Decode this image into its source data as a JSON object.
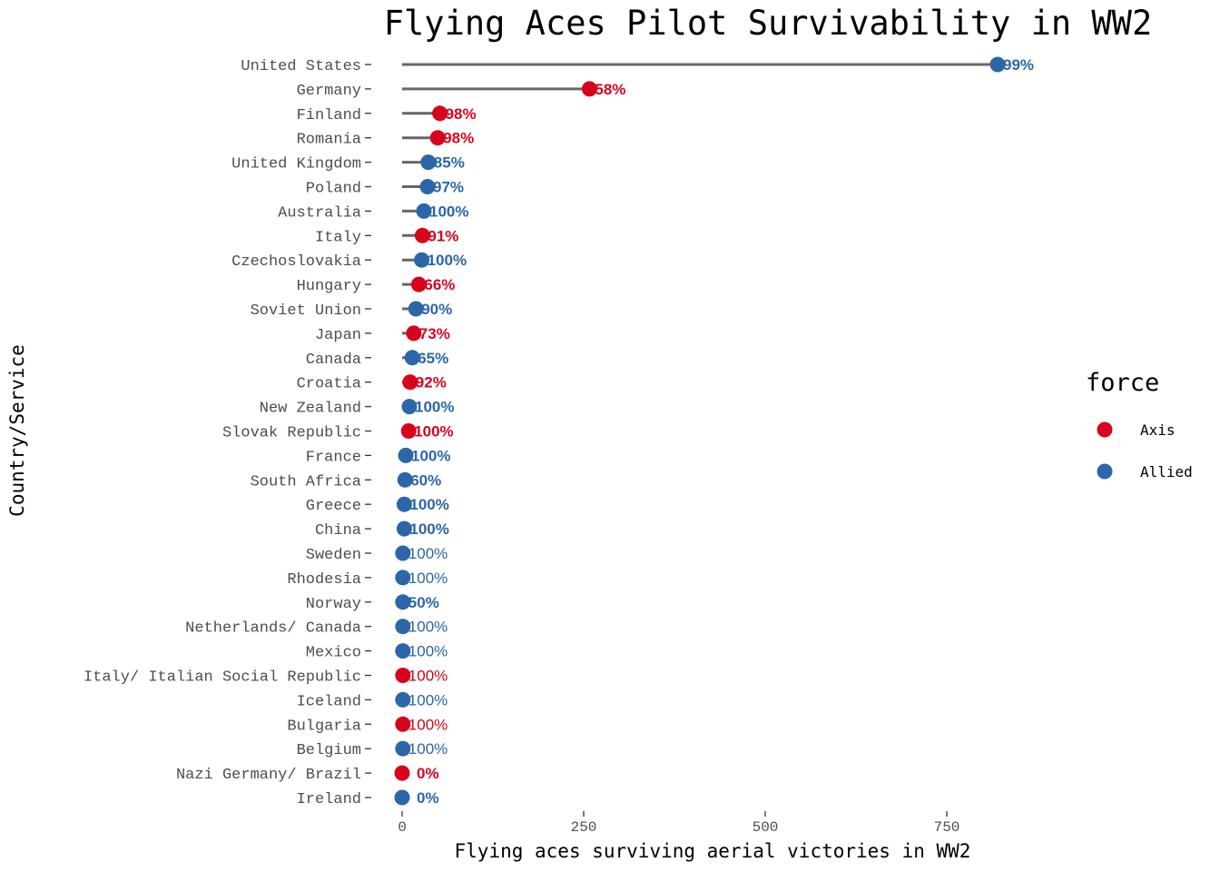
{
  "chart_data": {
    "type": "lollipop",
    "title": "Flying Aces Pilot Survivability in WW2",
    "xlabel": "Flying aces surviving aerial victories in WW2",
    "ylabel": "Country/Service",
    "xlim": [
      0,
      975
    ],
    "x_ticks": [
      0,
      250,
      500,
      750
    ],
    "grid": false,
    "legend": {
      "title": "force",
      "placement": "right",
      "entries": [
        {
          "name": "Axis",
          "color": "#d7031c"
        },
        {
          "name": "Allied",
          "color": "#2b66a8"
        }
      ]
    },
    "segment_color": "#666666",
    "rows": [
      {
        "country": "United States",
        "force": "Allied",
        "value": 820,
        "label": "99%",
        "bold": true
      },
      {
        "country": "Germany",
        "force": "Axis",
        "value": 258,
        "label": "58%",
        "bold": true
      },
      {
        "country": "Finland",
        "force": "Axis",
        "value": 52,
        "label": "98%",
        "bold": true
      },
      {
        "country": "Romania",
        "force": "Axis",
        "value": 49,
        "label": "98%",
        "bold": true
      },
      {
        "country": "United Kingdom",
        "force": "Allied",
        "value": 36,
        "label": "85%",
        "bold": true
      },
      {
        "country": "Poland",
        "force": "Allied",
        "value": 35,
        "label": "97%",
        "bold": true
      },
      {
        "country": "Australia",
        "force": "Allied",
        "value": 30,
        "label": "100%",
        "bold": true
      },
      {
        "country": "Italy",
        "force": "Axis",
        "value": 28,
        "label": "91%",
        "bold": true
      },
      {
        "country": "Czechoslovakia",
        "force": "Allied",
        "value": 27,
        "label": "100%",
        "bold": true
      },
      {
        "country": "Hungary",
        "force": "Axis",
        "value": 23,
        "label": "66%",
        "bold": true
      },
      {
        "country": "Soviet Union",
        "force": "Allied",
        "value": 19,
        "label": "90%",
        "bold": true
      },
      {
        "country": "Japan",
        "force": "Axis",
        "value": 16,
        "label": "73%",
        "bold": true
      },
      {
        "country": "Canada",
        "force": "Allied",
        "value": 14,
        "label": "65%",
        "bold": true
      },
      {
        "country": "Croatia",
        "force": "Axis",
        "value": 11,
        "label": "92%",
        "bold": true
      },
      {
        "country": "New Zealand",
        "force": "Allied",
        "value": 10,
        "label": "100%",
        "bold": true
      },
      {
        "country": "Slovak Republic",
        "force": "Axis",
        "value": 9,
        "label": "100%",
        "bold": true
      },
      {
        "country": "France",
        "force": "Allied",
        "value": 5,
        "label": "100%",
        "bold": true
      },
      {
        "country": "South Africa",
        "force": "Allied",
        "value": 4,
        "label": "60%",
        "bold": true
      },
      {
        "country": "Greece",
        "force": "Allied",
        "value": 3,
        "label": "100%",
        "bold": true
      },
      {
        "country": "China",
        "force": "Allied",
        "value": 3,
        "label": "100%",
        "bold": true
      },
      {
        "country": "Sweden",
        "force": "Allied",
        "value": 1,
        "label": "100%",
        "bold": false
      },
      {
        "country": "Rhodesia",
        "force": "Allied",
        "value": 1,
        "label": "100%",
        "bold": false
      },
      {
        "country": "Norway",
        "force": "Allied",
        "value": 1,
        "label": "50%",
        "bold": true
      },
      {
        "country": "Netherlands/ Canada",
        "force": "Allied",
        "value": 1,
        "label": "100%",
        "bold": false
      },
      {
        "country": "Mexico",
        "force": "Allied",
        "value": 1,
        "label": "100%",
        "bold": false
      },
      {
        "country": "Italy/ Italian Social Republic",
        "force": "Axis",
        "value": 1,
        "label": "100%",
        "bold": false
      },
      {
        "country": "Iceland",
        "force": "Allied",
        "value": 1,
        "label": "100%",
        "bold": false
      },
      {
        "country": "Bulgaria",
        "force": "Axis",
        "value": 1,
        "label": "100%",
        "bold": false
      },
      {
        "country": "Belgium",
        "force": "Allied",
        "value": 1,
        "label": "100%",
        "bold": false
      },
      {
        "country": "Nazi Germany/ Brazil",
        "force": "Axis",
        "value": 0,
        "label": "0%",
        "bold": true
      },
      {
        "country": "Ireland",
        "force": "Allied",
        "value": 0,
        "label": "0%",
        "bold": true
      }
    ]
  }
}
